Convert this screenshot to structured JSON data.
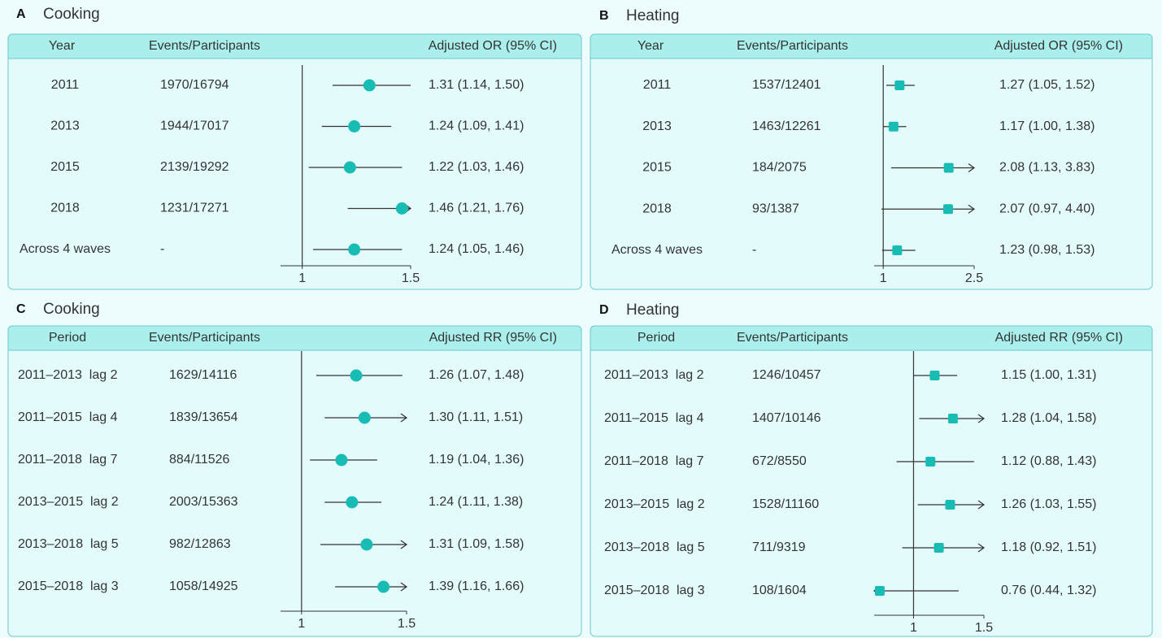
{
  "chart_data": [
    {
      "type": "forest",
      "panel": "A",
      "title": "Cooking",
      "columns": [
        "Year",
        "Events/Participants",
        "Adjusted OR (95% CI)"
      ],
      "categories": [
        "2011",
        "2013",
        "2015",
        "2018",
        "Across 4 waves"
      ],
      "events": [
        "1970/16794",
        "1944/17017",
        "2139/19292",
        "1231/17271",
        "-"
      ],
      "values": [
        1.31,
        1.24,
        1.22,
        1.46,
        1.24
      ],
      "lower": [
        1.14,
        1.09,
        1.03,
        1.21,
        1.05
      ],
      "upper": [
        1.5,
        1.41,
        1.46,
        1.76,
        1.46
      ],
      "value_labels": [
        "1.31 (1.14, 1.50)",
        "1.24 (1.09, 1.41)",
        "1.22 (1.03, 1.46)",
        "1.46 (1.21, 1.76)",
        "1.24 (1.05, 1.46)"
      ],
      "xlim": [
        0.9,
        1.5
      ],
      "xticks": [
        1,
        1.5
      ],
      "reference_line": 1,
      "marker": "circle",
      "color": "#17bdb5"
    },
    {
      "type": "forest",
      "panel": "B",
      "title": "Heating",
      "columns": [
        "Year",
        "Events/Participants",
        "Adjusted OR (95% CI)"
      ],
      "categories": [
        "2011",
        "2013",
        "2015",
        "2018",
        "Across 4 waves"
      ],
      "events": [
        "1537/12401",
        "1463/12261",
        "184/2075",
        "93/1387",
        "-"
      ],
      "values": [
        1.27,
        1.17,
        2.08,
        2.07,
        1.23
      ],
      "lower": [
        1.05,
        1.0,
        1.13,
        0.97,
        0.98
      ],
      "upper": [
        1.52,
        1.38,
        3.83,
        4.4,
        1.53
      ],
      "value_labels": [
        "1.27 (1.05, 1.52)",
        "1.17 (1.00, 1.38)",
        "2.08 (1.13, 3.83)",
        "2.07 (0.97, 4.40)",
        "1.23 (0.98, 1.53)"
      ],
      "xlim": [
        0.85,
        2.5
      ],
      "xticks": [
        1,
        2.5
      ],
      "reference_line": 1,
      "marker": "square",
      "color": "#17bdb5"
    },
    {
      "type": "forest",
      "panel": "C",
      "title": "Cooking",
      "columns": [
        "Period",
        "Events/Participants",
        "Adjusted RR (95% CI)"
      ],
      "categories": [
        "2011–2013  lag 2",
        "2011–2015  lag 4",
        "2011–2018  lag 7",
        "2013–2015  lag 2",
        "2013–2018  lag 5",
        "2015–2018  lag 3"
      ],
      "events": [
        "1629/14116",
        "1839/13654",
        "884/11526",
        "2003/15363",
        "982/12863",
        "1058/14925"
      ],
      "values": [
        1.26,
        1.3,
        1.19,
        1.24,
        1.31,
        1.39
      ],
      "lower": [
        1.07,
        1.11,
        1.04,
        1.11,
        1.09,
        1.16
      ],
      "upper": [
        1.48,
        1.51,
        1.36,
        1.38,
        1.58,
        1.66
      ],
      "value_labels": [
        "1.26 (1.07, 1.48)",
        "1.30 (1.11, 1.51)",
        "1.19 (1.04, 1.36)",
        "1.24 (1.11, 1.38)",
        "1.31 (1.09, 1.58)",
        "1.39 (1.16, 1.66)"
      ],
      "xlim": [
        0.9,
        1.5
      ],
      "xticks": [
        1,
        1.5
      ],
      "reference_line": 1,
      "marker": "circle",
      "color": "#17bdb5"
    },
    {
      "type": "forest",
      "panel": "D",
      "title": "Heating",
      "columns": [
        "Period",
        "Events/Participants",
        "Adjusted RR (95% CI)"
      ],
      "categories": [
        "2011–2013  lag 2",
        "2011–2015  lag 4",
        "2011–2018  lag 7",
        "2013–2015  lag 2",
        "2013–2018  lag 5",
        "2015–2018  lag 3"
      ],
      "events": [
        "1246/10457",
        "1407/10146",
        "672/8550",
        "1528/11160",
        "711/9319",
        "108/1604"
      ],
      "values": [
        1.15,
        1.28,
        1.12,
        1.26,
        1.18,
        0.76
      ],
      "lower": [
        1.0,
        1.04,
        0.88,
        1.03,
        0.92,
        0.44
      ],
      "upper": [
        1.31,
        1.58,
        1.43,
        1.55,
        1.51,
        1.32
      ],
      "value_labels": [
        "1.15 (1.00, 1.31)",
        "1.28 (1.04, 1.58)",
        "1.12 (0.88, 1.43)",
        "1.26 (1.03, 1.55)",
        "1.18 (0.92, 1.51)",
        "0.76 (0.44, 1.32)"
      ],
      "xlim": [
        0.72,
        1.5
      ],
      "xticks": [
        1,
        1.5
      ],
      "reference_line": 1,
      "marker": "square",
      "color": "#17bdb5"
    }
  ]
}
